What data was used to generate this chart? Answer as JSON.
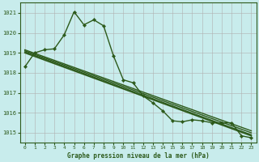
{
  "background_color": "#c8ecec",
  "grid_color": "#b0b0b0",
  "line_color": "#2d5a1b",
  "title": "Graphe pression niveau de la mer (hPa)",
  "xlim": [
    -0.5,
    23.5
  ],
  "ylim": [
    1014.5,
    1021.5
  ],
  "yticks": [
    1015,
    1016,
    1017,
    1018,
    1019,
    1020,
    1021
  ],
  "xticks": [
    0,
    1,
    2,
    3,
    4,
    5,
    6,
    7,
    8,
    9,
    10,
    11,
    12,
    13,
    14,
    15,
    16,
    17,
    18,
    19,
    20,
    21,
    22,
    23
  ],
  "series": [
    {
      "x": [
        0,
        1,
        2,
        3,
        4,
        5,
        6,
        7,
        8,
        9,
        10,
        11,
        12,
        13,
        14,
        15,
        16,
        17,
        18,
        19,
        20,
        21,
        22,
        23
      ],
      "y": [
        1018.3,
        1019.0,
        1019.15,
        1019.2,
        1019.9,
        1021.05,
        1020.4,
        1020.65,
        1020.35,
        1018.85,
        1017.65,
        1017.5,
        1016.85,
        1016.5,
        1016.1,
        1015.6,
        1015.55,
        1015.65,
        1015.6,
        1015.5,
        1015.5,
        1015.5,
        1014.85,
        1014.75
      ],
      "marker": "D",
      "markersize": 2.2,
      "linewidth": 1.0
    },
    {
      "x": [
        0,
        23
      ],
      "y": [
        1019.0,
        1014.85
      ],
      "marker": null,
      "linewidth": 1.2
    },
    {
      "x": [
        0,
        23
      ],
      "y": [
        1019.05,
        1014.9
      ],
      "marker": null,
      "linewidth": 1.0
    },
    {
      "x": [
        0,
        23
      ],
      "y": [
        1019.1,
        1015.0
      ],
      "marker": null,
      "linewidth": 1.0
    },
    {
      "x": [
        0,
        23
      ],
      "y": [
        1019.15,
        1015.1
      ],
      "marker": null,
      "linewidth": 1.0
    }
  ]
}
